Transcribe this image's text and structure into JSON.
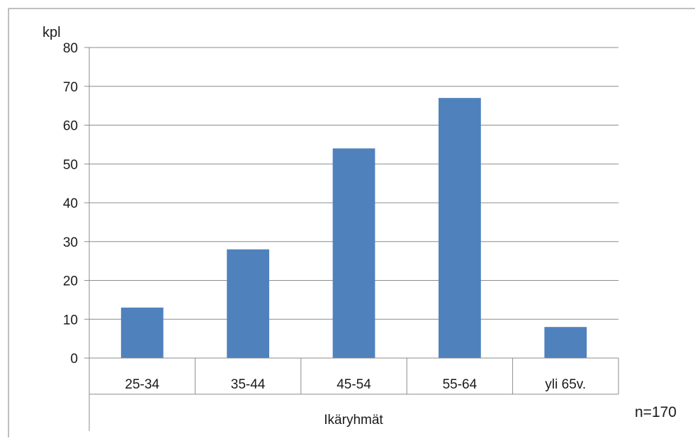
{
  "chart_data": {
    "type": "bar",
    "title": "",
    "ylabel": "kpl",
    "xlabel": "Ikäryhmät",
    "categories": [
      "25-34",
      "35-44",
      "45-54",
      "55-64",
      "yli 65v."
    ],
    "values": [
      13,
      28,
      54,
      67,
      8
    ],
    "ylim": [
      0,
      80
    ],
    "yticks": [
      0,
      10,
      20,
      30,
      40,
      50,
      60,
      70,
      80
    ],
    "grid": true,
    "legend": "none",
    "bar_color": "#4f81bd",
    "annotation": "n=170"
  }
}
